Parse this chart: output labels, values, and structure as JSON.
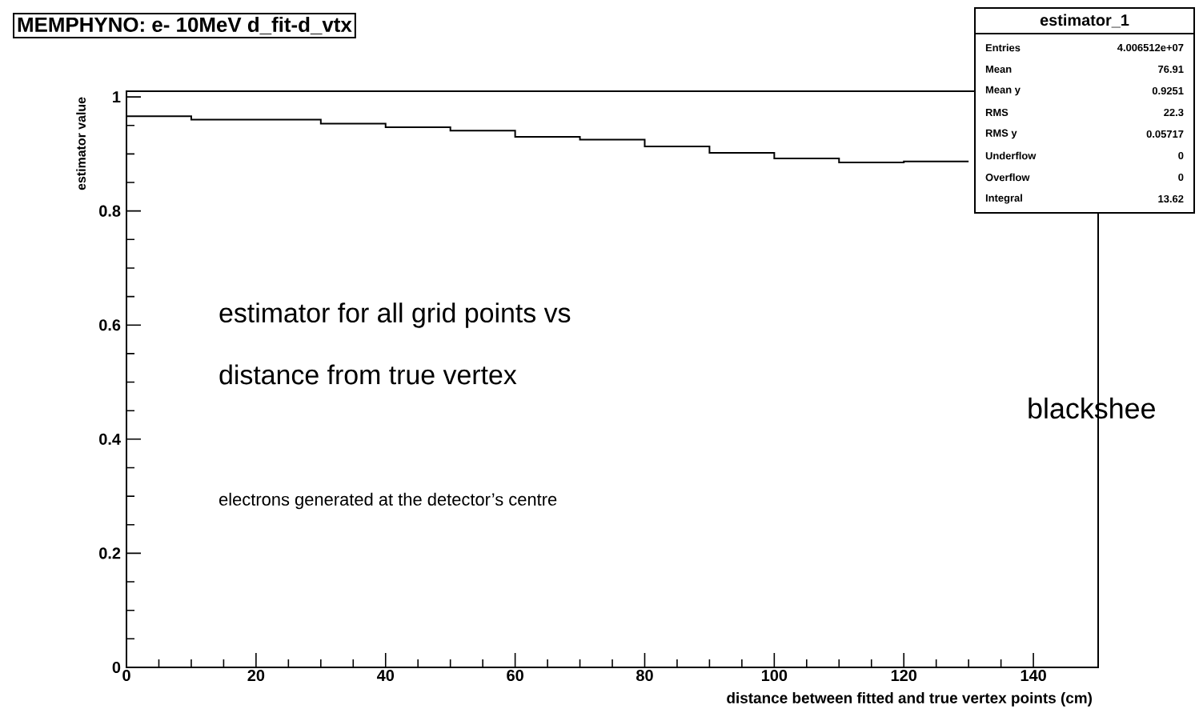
{
  "chart_data": {
    "type": "histogram",
    "title": "MEMPHYNO: e- 10MeV d_fit-d_vtx",
    "xlabel": "distance between fitted and true vertex points (cm)",
    "ylabel": "estimator value",
    "bins": [
      0,
      10,
      20,
      30,
      40,
      50,
      60,
      70,
      80,
      90,
      100,
      110,
      120,
      130
    ],
    "values": [
      0.966,
      0.96,
      0.96,
      0.953,
      0.947,
      0.941,
      0.93,
      0.925,
      0.913,
      0.902,
      0.892,
      0.885,
      0.887
    ],
    "color": "#000000",
    "xlim": [
      0,
      150
    ],
    "ylim": [
      0,
      1.01
    ],
    "xticks": [
      0,
      20,
      40,
      60,
      80,
      100,
      120,
      140
    ],
    "yticks": [
      0,
      0.2,
      0.4,
      0.6,
      0.8,
      1
    ],
    "grid": false,
    "annotations": [
      "estimator_1",
      "Entries",
      "4.006512e+07",
      "Mean",
      "76.91",
      "Mean y",
      "0.9251",
      "RMS",
      "22.3",
      "RMS y",
      "0.05717",
      "Underflow",
      "0",
      "Overflow",
      "0",
      "Integral",
      "13.62",
      "estimator for all grid points vs",
      "distance from true vertex",
      "electrons generated at the detector’s centre",
      "blackshee"
    ]
  }
}
